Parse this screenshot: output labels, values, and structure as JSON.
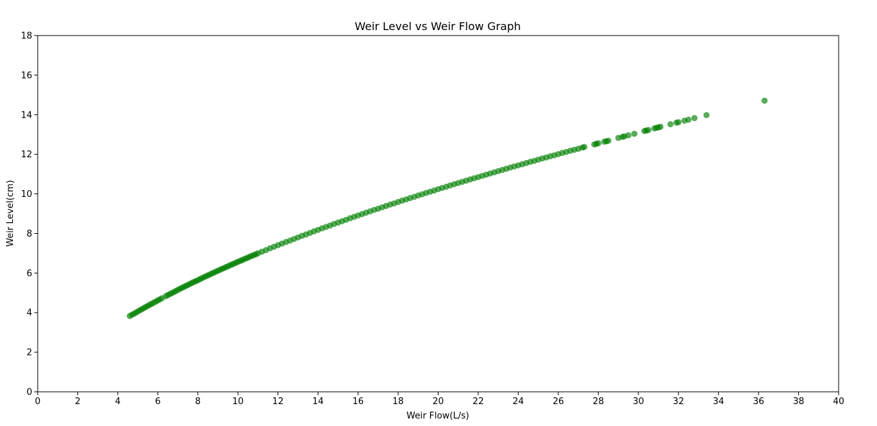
{
  "chart_data": {
    "type": "scatter",
    "title": "Weir Level vs Weir Flow Graph",
    "xlabel": "Weir Flow(L/s)",
    "ylabel": "Weir Level(cm)",
    "xlim": [
      0,
      40
    ],
    "ylim": [
      0,
      18
    ],
    "xticks": [
      0,
      2,
      4,
      6,
      8,
      10,
      12,
      14,
      16,
      18,
      20,
      22,
      24,
      26,
      28,
      30,
      32,
      34,
      36,
      38,
      40
    ],
    "yticks": [
      0,
      2,
      4,
      6,
      8,
      10,
      12,
      14,
      16,
      18
    ],
    "grid": false,
    "legend": "none",
    "marker_color": "#008000",
    "marker_opacity": 0.65,
    "series": [
      {
        "x": [
          4.6,
          4.7,
          4.8,
          4.9,
          5.0,
          5.1,
          5.2,
          5.3,
          5.4,
          5.5,
          5.6,
          5.7,
          5.8,
          5.9,
          6.0,
          6.1,
          6.2,
          6.4,
          6.5,
          6.6,
          6.7,
          6.8,
          6.9,
          7.0,
          7.1,
          7.2,
          7.3,
          7.4,
          7.5,
          7.6,
          7.7,
          7.8,
          7.9,
          8.0,
          8.1,
          8.2,
          8.3,
          8.4,
          8.5,
          8.6,
          8.7,
          8.8,
          8.9,
          9.0,
          9.1,
          9.2,
          9.3,
          9.4,
          9.5,
          9.6,
          9.7,
          9.8,
          9.9,
          10.0,
          10.1,
          10.2,
          10.3,
          10.4,
          10.5,
          10.6,
          10.7,
          10.8,
          10.9,
          11.0,
          11.2,
          11.4,
          11.6,
          11.8,
          12.0,
          12.2,
          12.4,
          12.6,
          12.8,
          13.0,
          13.2,
          13.4,
          13.6,
          13.8,
          14.0,
          14.2,
          14.4,
          14.6,
          14.8,
          15.0,
          15.2,
          15.4,
          15.6,
          15.8,
          16.0,
          16.2,
          16.4,
          16.6,
          16.8,
          17.0,
          17.2,
          17.4,
          17.6,
          17.8,
          18.0,
          18.2,
          18.4,
          18.6,
          18.8,
          19.0,
          19.2,
          19.4,
          19.6,
          19.8,
          20.0,
          20.2,
          20.4,
          20.6,
          20.8,
          21.0,
          21.2,
          21.4,
          21.6,
          21.8,
          22.0,
          22.2,
          22.4,
          22.6,
          22.8,
          23.0,
          23.2,
          23.4,
          23.6,
          23.8,
          24.0,
          24.2,
          24.4,
          24.6,
          24.8,
          25.0,
          25.2,
          25.4,
          25.6,
          25.8,
          26.0,
          26.2,
          26.4,
          26.6,
          26.8,
          27.0,
          27.2,
          27.3,
          27.8,
          27.9,
          28.0,
          28.3,
          28.4,
          28.5,
          29.0,
          29.2,
          29.3,
          29.5,
          29.8,
          30.3,
          30.4,
          30.5,
          30.8,
          30.9,
          31.0,
          31.1,
          31.6,
          31.9,
          32.0,
          32.3,
          32.5,
          32.8,
          33.4,
          36.3
        ],
        "y": [
          3.83,
          3.89,
          3.94,
          4.0,
          4.06,
          4.12,
          4.17,
          4.23,
          4.29,
          4.34,
          4.4,
          4.45,
          4.51,
          4.56,
          4.62,
          4.67,
          4.73,
          4.83,
          4.89,
          4.94,
          4.99,
          5.04,
          5.09,
          5.15,
          5.2,
          5.25,
          5.3,
          5.35,
          5.4,
          5.45,
          5.5,
          5.55,
          5.59,
          5.64,
          5.69,
          5.74,
          5.79,
          5.84,
          5.88,
          5.93,
          5.98,
          6.02,
          6.07,
          6.12,
          6.16,
          6.21,
          6.25,
          6.3,
          6.34,
          6.39,
          6.43,
          6.48,
          6.52,
          6.57,
          6.61,
          6.65,
          6.7,
          6.74,
          6.78,
          6.83,
          6.87,
          6.91,
          6.95,
          7.0,
          7.08,
          7.16,
          7.25,
          7.33,
          7.41,
          7.49,
          7.57,
          7.64,
          7.72,
          7.8,
          7.88,
          7.95,
          8.03,
          8.11,
          8.18,
          8.26,
          8.33,
          8.4,
          8.48,
          8.55,
          8.62,
          8.69,
          8.77,
          8.84,
          8.91,
          8.98,
          9.05,
          9.12,
          9.19,
          9.25,
          9.32,
          9.39,
          9.46,
          9.52,
          9.59,
          9.66,
          9.72,
          9.79,
          9.85,
          9.92,
          9.98,
          10.05,
          10.11,
          10.17,
          10.24,
          10.3,
          10.36,
          10.43,
          10.49,
          10.55,
          10.61,
          10.67,
          10.73,
          10.79,
          10.85,
          10.91,
          10.97,
          11.03,
          11.09,
          11.15,
          11.21,
          11.27,
          11.33,
          11.39,
          11.44,
          11.5,
          11.56,
          11.62,
          11.67,
          11.73,
          11.79,
          11.84,
          11.9,
          11.95,
          12.01,
          12.07,
          12.12,
          12.18,
          12.23,
          12.28,
          12.34,
          12.37,
          12.5,
          12.53,
          12.56,
          12.64,
          12.66,
          12.69,
          12.83,
          12.88,
          12.91,
          12.96,
          13.04,
          13.18,
          13.2,
          13.23,
          13.31,
          13.34,
          13.36,
          13.39,
          13.52,
          13.6,
          13.62,
          13.7,
          13.75,
          13.83,
          13.98,
          14.71
        ]
      }
    ]
  }
}
